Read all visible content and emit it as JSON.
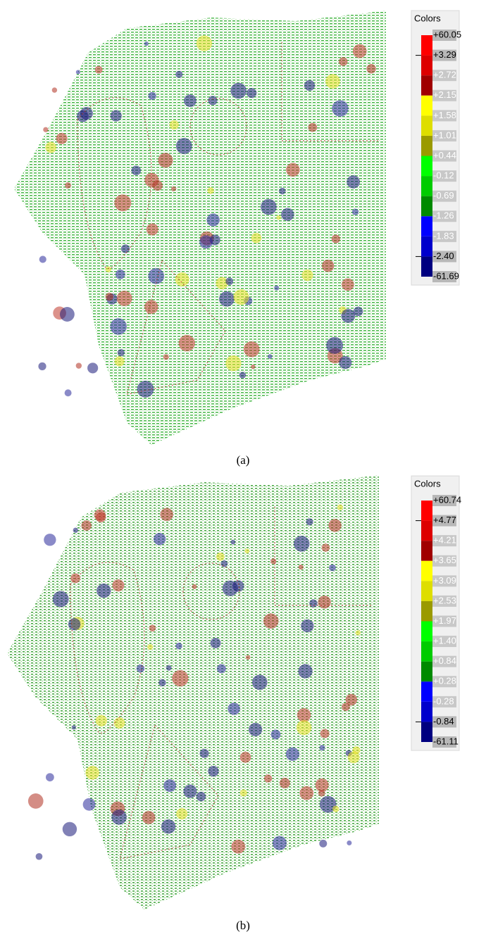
{
  "panels": [
    {
      "legend_title": "Colors",
      "labels": [
        "+60.05",
        "+3.29",
        "+2.72",
        "+2.15",
        "+1.58",
        "+1.01",
        "+0.44",
        "-0.12",
        "-0.69",
        "-1.26",
        "-1.83",
        "-2.40",
        "-61.69"
      ],
      "caption": "(a)"
    },
    {
      "legend_title": "Colors",
      "labels": [
        "+60.74",
        "+4.77",
        "+4.21",
        "+3.65",
        "+3.09",
        "+2.53",
        "+1.97",
        "+1.40",
        "+0.84",
        "+0.28",
        "-0.28",
        "-0.84",
        "-61.11"
      ],
      "caption": "(b)"
    }
  ]
}
